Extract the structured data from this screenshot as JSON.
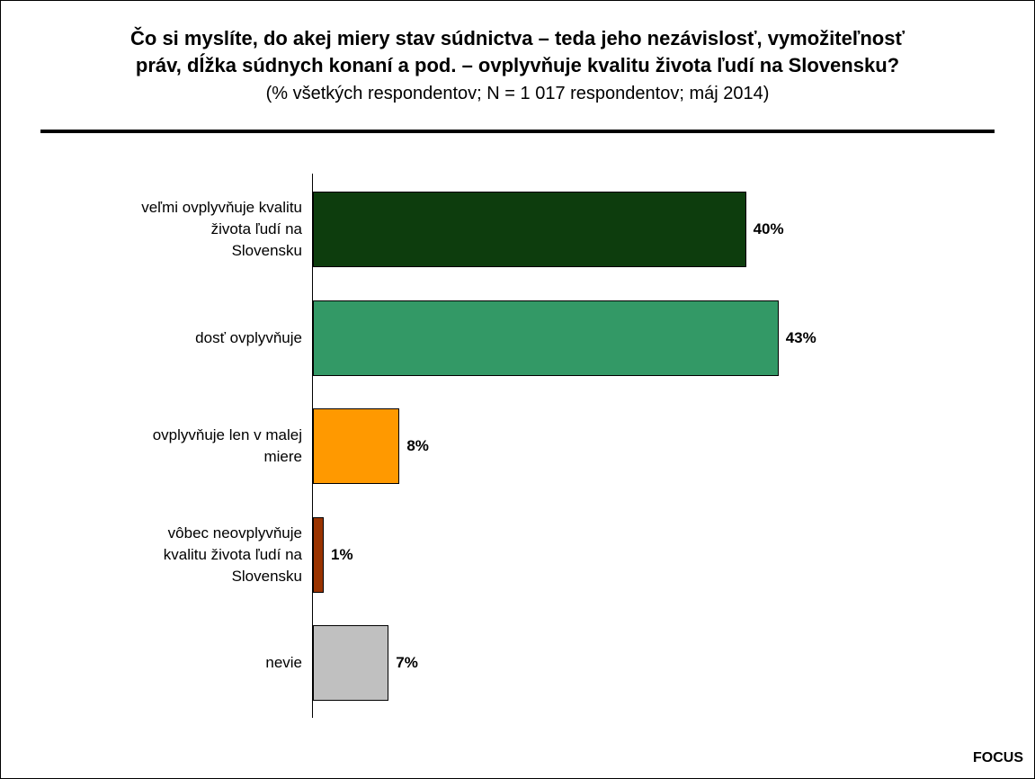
{
  "chart_data": {
    "type": "bar",
    "orientation": "horizontal",
    "title": "Čo si myslíte, do akej miery stav súdnictva – teda jeho nezávislosť, vymožiteľnosť\npráv, dĺžka súdnych konaní a pod. – ovplyvňuje kvalitu života ľudí na Slovensku?",
    "subtitle": "(% všetkých respondentov; N = 1 017 respondentov; máj 2014)",
    "categories": [
      "veľmi ovplyvňuje kvalitu\nživota ľudí na\nSlovensku",
      "dosť ovplyvňuje",
      "ovplyvňuje len v malej\nmiere",
      "vôbec neovplyvňuje\nkvalitu života ľudí na\nSlovensku",
      "nevie"
    ],
    "values": [
      40,
      43,
      8,
      1,
      7
    ],
    "value_labels": [
      "40%",
      "43%",
      "8%",
      "1%",
      "7%"
    ],
    "unit": "%",
    "colors": [
      "#0d3d0d",
      "#339966",
      "#ff9900",
      "#993300",
      "#c0c0c0"
    ],
    "grid": false,
    "legend": "none"
  },
  "footer": {
    "brand": "FOCUS"
  }
}
